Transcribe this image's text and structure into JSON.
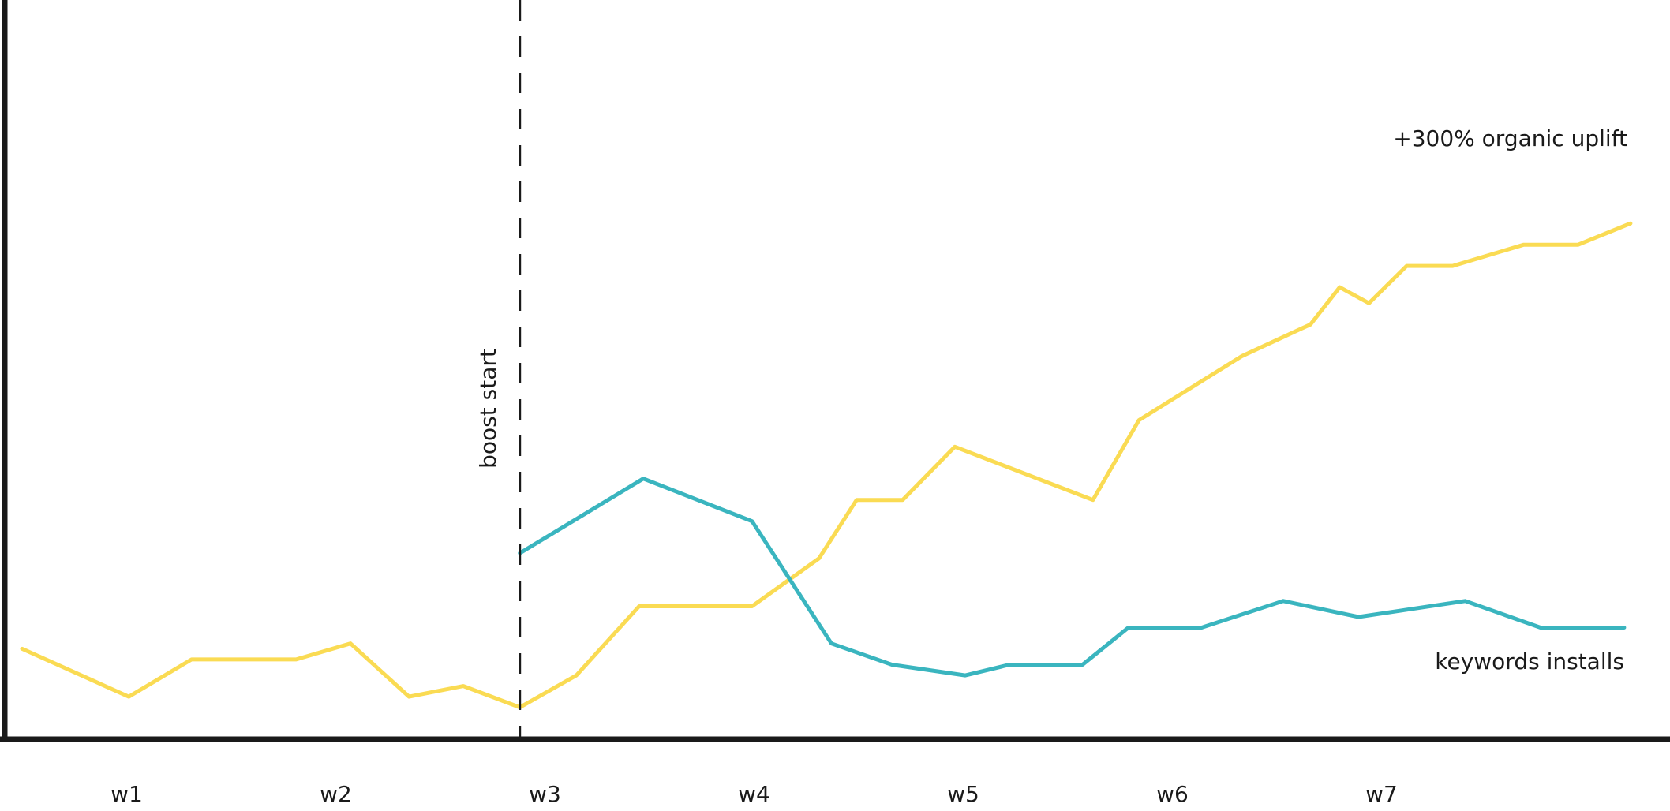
{
  "chart_data": {
    "type": "line",
    "title": "",
    "xlabel": "",
    "ylabel": "",
    "grid": false,
    "x_ticks": [
      "w1",
      "w2",
      "w3",
      "w4",
      "w5",
      "w6",
      "w7"
    ],
    "xlim": [
      0,
      7.8
    ],
    "ylim": [
      0,
      100
    ],
    "series": [
      {
        "color": "#FADB53",
        "points": [
          [
            0.0,
            17
          ],
          [
            0.51,
            8
          ],
          [
            0.81,
            15
          ],
          [
            1.31,
            15
          ],
          [
            1.57,
            18
          ],
          [
            1.85,
            8
          ],
          [
            2.11,
            10
          ],
          [
            2.38,
            6
          ],
          [
            2.65,
            12
          ],
          [
            2.95,
            25
          ],
          [
            3.49,
            25
          ],
          [
            3.81,
            34
          ],
          [
            3.99,
            45
          ],
          [
            4.21,
            45
          ],
          [
            4.46,
            55
          ],
          [
            5.12,
            45
          ],
          [
            5.34,
            60
          ],
          [
            5.83,
            72
          ],
          [
            6.16,
            78
          ],
          [
            6.3,
            85
          ],
          [
            6.44,
            82
          ],
          [
            6.62,
            89
          ],
          [
            6.84,
            89
          ],
          [
            7.18,
            93
          ],
          [
            7.44,
            93
          ],
          [
            7.69,
            97
          ]
        ]
      },
      {
        "color": "#3AB5BF",
        "points": [
          [
            2.38,
            35
          ],
          [
            2.97,
            49
          ],
          [
            3.49,
            41
          ],
          [
            3.87,
            18
          ],
          [
            4.16,
            14
          ],
          [
            4.51,
            12
          ],
          [
            4.72,
            14
          ],
          [
            5.07,
            14
          ],
          [
            5.29,
            21
          ],
          [
            5.64,
            21
          ],
          [
            6.03,
            26
          ],
          [
            6.39,
            23
          ],
          [
            6.9,
            26
          ],
          [
            7.26,
            21
          ],
          [
            7.66,
            21
          ]
        ]
      }
    ],
    "annotations": {
      "boost_label": "boost start",
      "boost_x": 2.38,
      "organic_label": "+300% organic uplift",
      "keywords_label": "keywords installs"
    }
  }
}
